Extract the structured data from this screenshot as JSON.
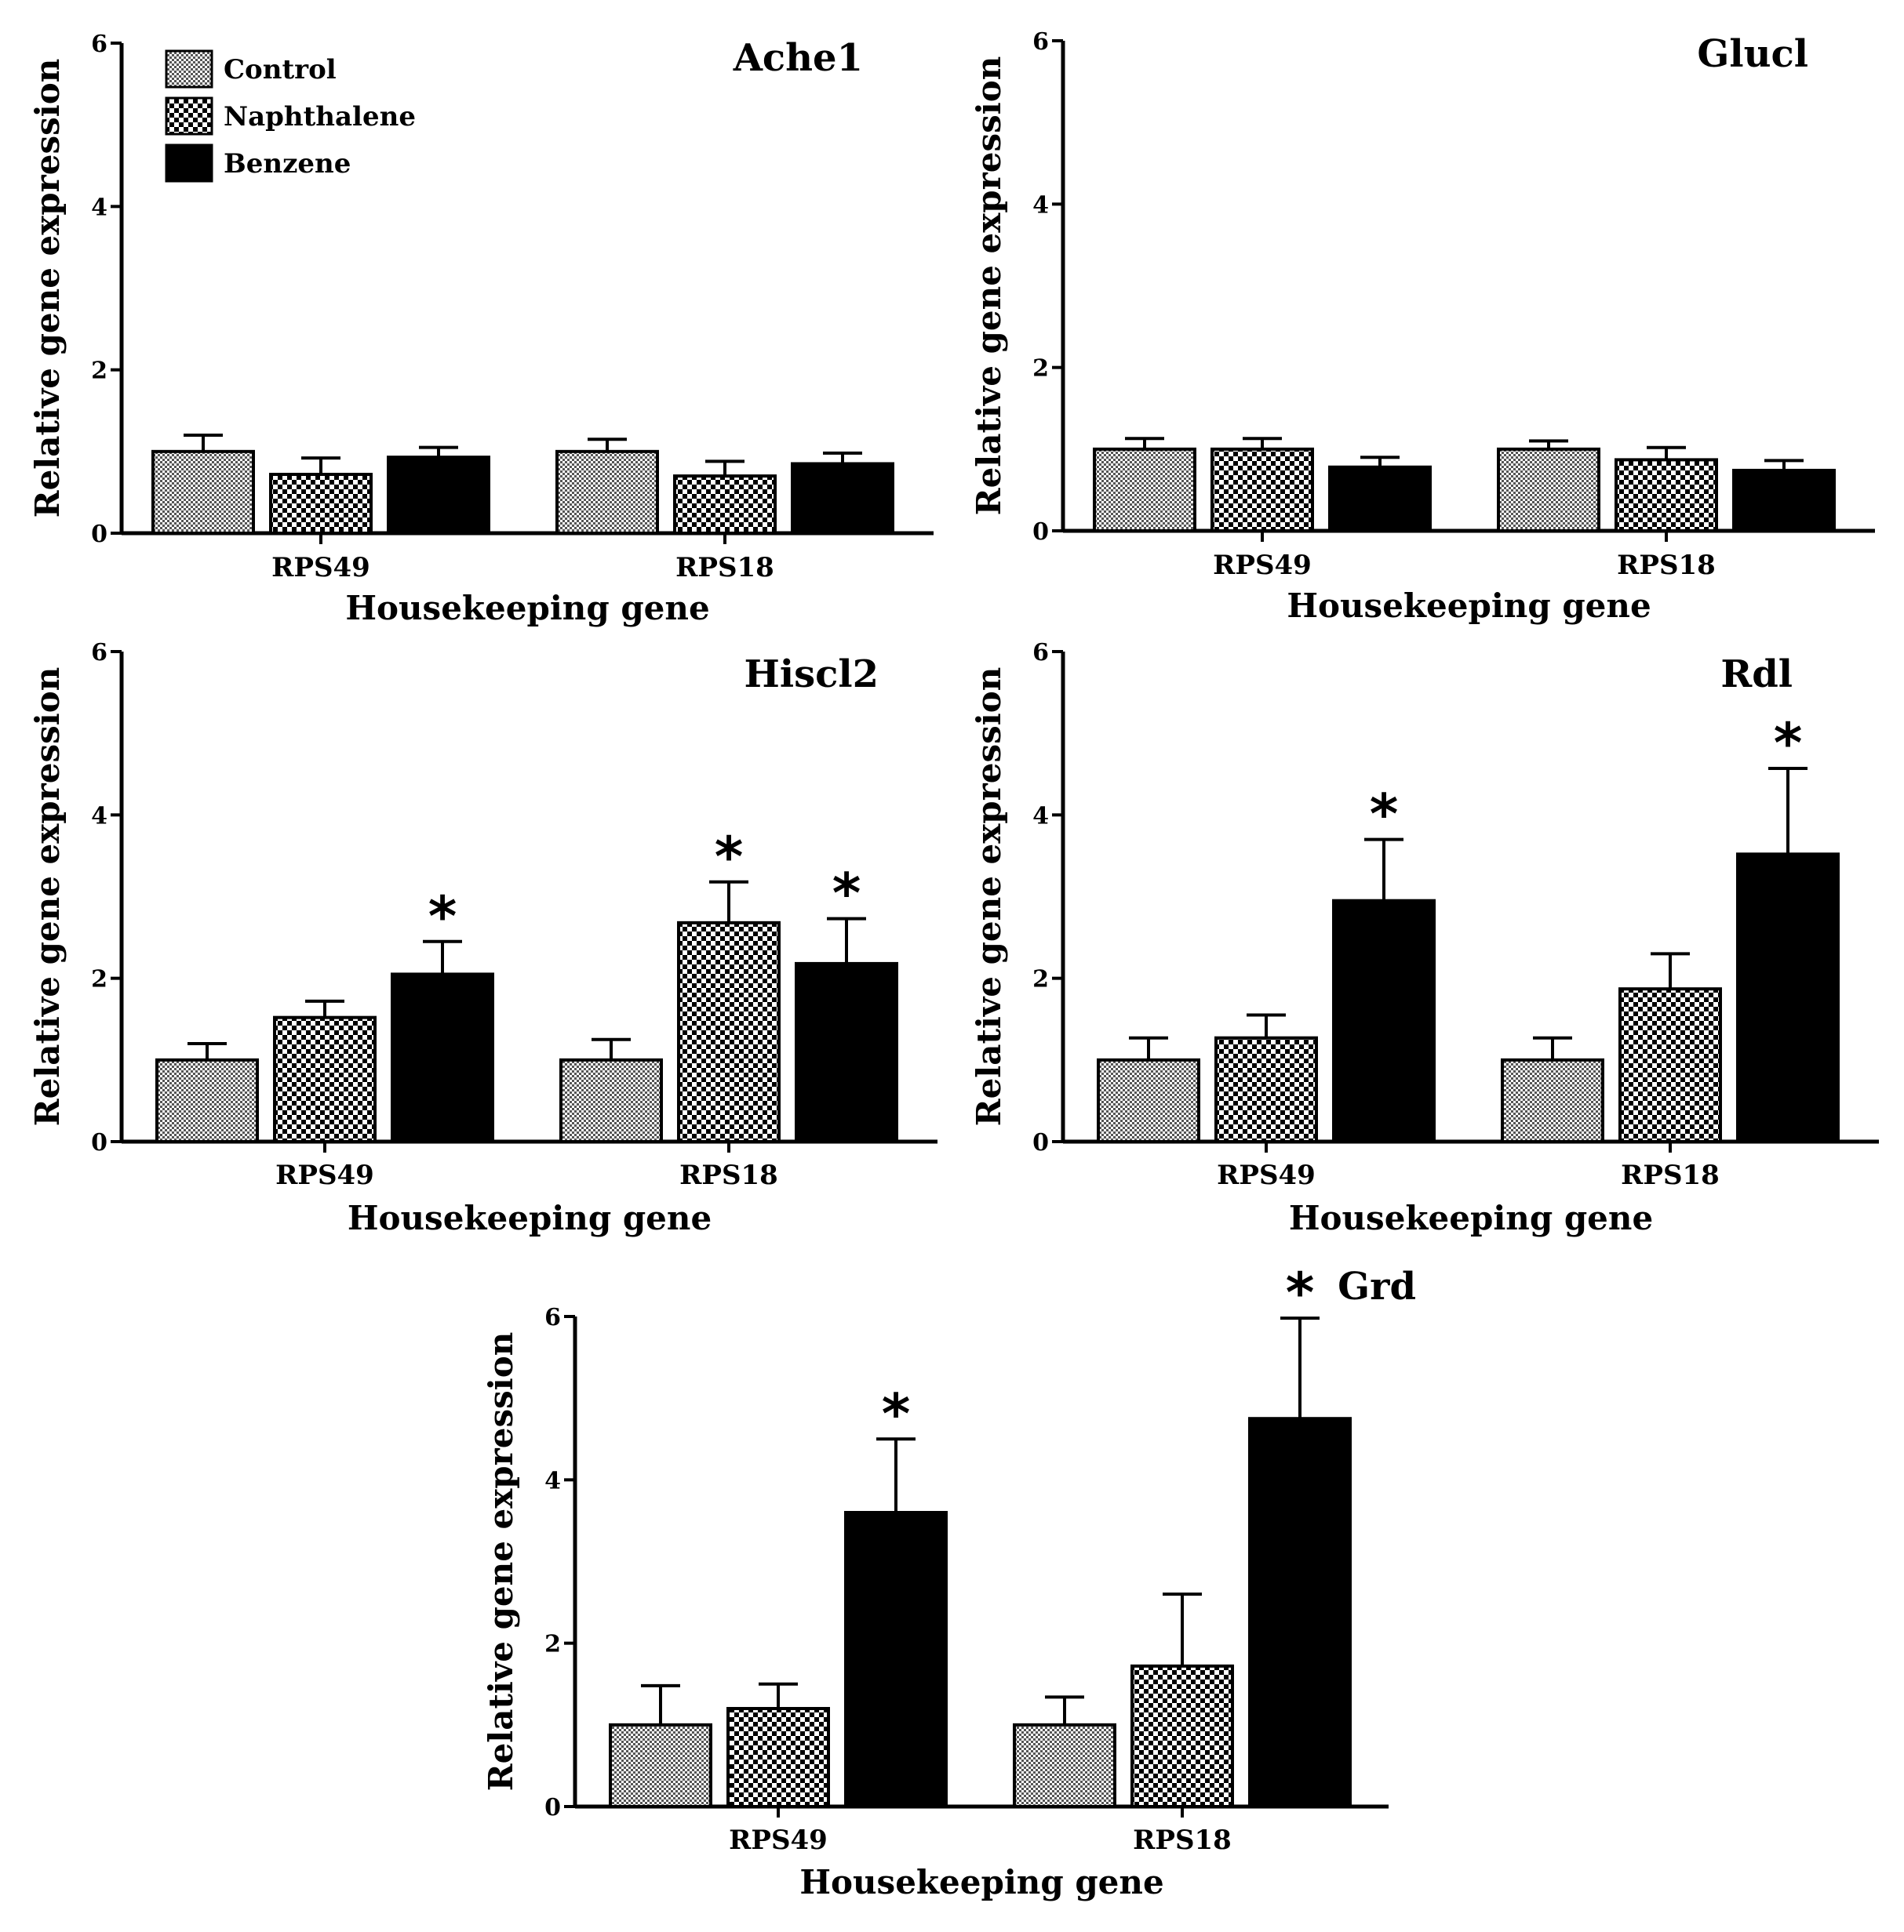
{
  "figure": {
    "background": "#ffffff",
    "bar_stroke": "#000000"
  },
  "legend": [
    {
      "label": "Control",
      "pattern": "fine-check"
    },
    {
      "label": "Naphthalene",
      "pattern": "coarse-check"
    },
    {
      "label": "Benzene",
      "pattern": "solid"
    }
  ],
  "chart_data": [
    {
      "type": "bar",
      "title": "Ache1",
      "xlabel": "Housekeeping gene",
      "ylabel": "Relative gene expression",
      "ylim": [
        0,
        6
      ],
      "yticks": [
        "0",
        "2",
        "4",
        "6"
      ],
      "categories": [
        "RPS49",
        "RPS18"
      ],
      "series": [
        {
          "name": "Control",
          "values": [
            1.0,
            1.0
          ],
          "errors": [
            0.2,
            0.15
          ],
          "significant": [
            false,
            false
          ]
        },
        {
          "name": "Naphthalene",
          "values": [
            0.72,
            0.7
          ],
          "errors": [
            0.2,
            0.18
          ],
          "significant": [
            false,
            false
          ]
        },
        {
          "name": "Benzene",
          "values": [
            0.93,
            0.85
          ],
          "errors": [
            0.12,
            0.13
          ],
          "significant": [
            false,
            false
          ]
        }
      ]
    },
    {
      "type": "bar",
      "title": "Glucl",
      "xlabel": "Housekeeping gene",
      "ylabel": "Relative gene expression",
      "ylim": [
        0,
        6
      ],
      "yticks": [
        "0",
        "2",
        "4",
        "6"
      ],
      "categories": [
        "RPS49",
        "RPS18"
      ],
      "series": [
        {
          "name": "Control",
          "values": [
            1.0,
            1.0
          ],
          "errors": [
            0.13,
            0.1
          ],
          "significant": [
            false,
            false
          ]
        },
        {
          "name": "Naphthalene",
          "values": [
            1.0,
            0.87
          ],
          "errors": [
            0.13,
            0.15
          ],
          "significant": [
            false,
            false
          ]
        },
        {
          "name": "Benzene",
          "values": [
            0.78,
            0.74
          ],
          "errors": [
            0.12,
            0.12
          ],
          "significant": [
            false,
            false
          ]
        }
      ]
    },
    {
      "type": "bar",
      "title": "Hiscl2",
      "xlabel": "Housekeeping gene",
      "ylabel": "Relative gene expression",
      "ylim": [
        0,
        6
      ],
      "yticks": [
        "0",
        "2",
        "4",
        "6"
      ],
      "categories": [
        "RPS49",
        "RPS18"
      ],
      "series": [
        {
          "name": "Control",
          "values": [
            1.0,
            1.0
          ],
          "errors": [
            0.2,
            0.25
          ],
          "significant": [
            false,
            false
          ]
        },
        {
          "name": "Naphthalene",
          "values": [
            1.52,
            2.68
          ],
          "errors": [
            0.2,
            0.5
          ],
          "significant": [
            false,
            true
          ]
        },
        {
          "name": "Benzene",
          "values": [
            2.05,
            2.18
          ],
          "errors": [
            0.4,
            0.55
          ],
          "significant": [
            true,
            true
          ]
        }
      ]
    },
    {
      "type": "bar",
      "title": "Rdl",
      "xlabel": "Housekeeping gene",
      "ylabel": "Relative gene expression",
      "ylim": [
        0,
        6
      ],
      "yticks": [
        "0",
        "2",
        "4",
        "6"
      ],
      "categories": [
        "RPS49",
        "RPS18"
      ],
      "series": [
        {
          "name": "Control",
          "values": [
            1.0,
            1.0
          ],
          "errors": [
            0.27,
            0.27
          ],
          "significant": [
            false,
            false
          ]
        },
        {
          "name": "Naphthalene",
          "values": [
            1.27,
            1.87
          ],
          "errors": [
            0.28,
            0.43
          ],
          "significant": [
            false,
            false
          ]
        },
        {
          "name": "Benzene",
          "values": [
            2.95,
            3.52
          ],
          "errors": [
            0.75,
            1.05
          ],
          "significant": [
            true,
            true
          ]
        }
      ]
    },
    {
      "type": "bar",
      "title": "Grd",
      "xlabel": "Housekeeping gene",
      "ylabel": "Relative gene expression",
      "ylim": [
        0,
        6
      ],
      "yticks": [
        "0",
        "2",
        "4",
        "6"
      ],
      "categories": [
        "RPS49",
        "RPS18"
      ],
      "series": [
        {
          "name": "Control",
          "values": [
            1.0,
            1.0
          ],
          "errors": [
            0.48,
            0.34
          ],
          "significant": [
            false,
            false
          ]
        },
        {
          "name": "Naphthalene",
          "values": [
            1.2,
            1.72
          ],
          "errors": [
            0.3,
            0.88
          ],
          "significant": [
            false,
            false
          ]
        },
        {
          "name": "Benzene",
          "values": [
            3.6,
            4.75
          ],
          "errors": [
            0.9,
            1.23
          ],
          "significant": [
            true,
            true
          ]
        }
      ]
    }
  ]
}
